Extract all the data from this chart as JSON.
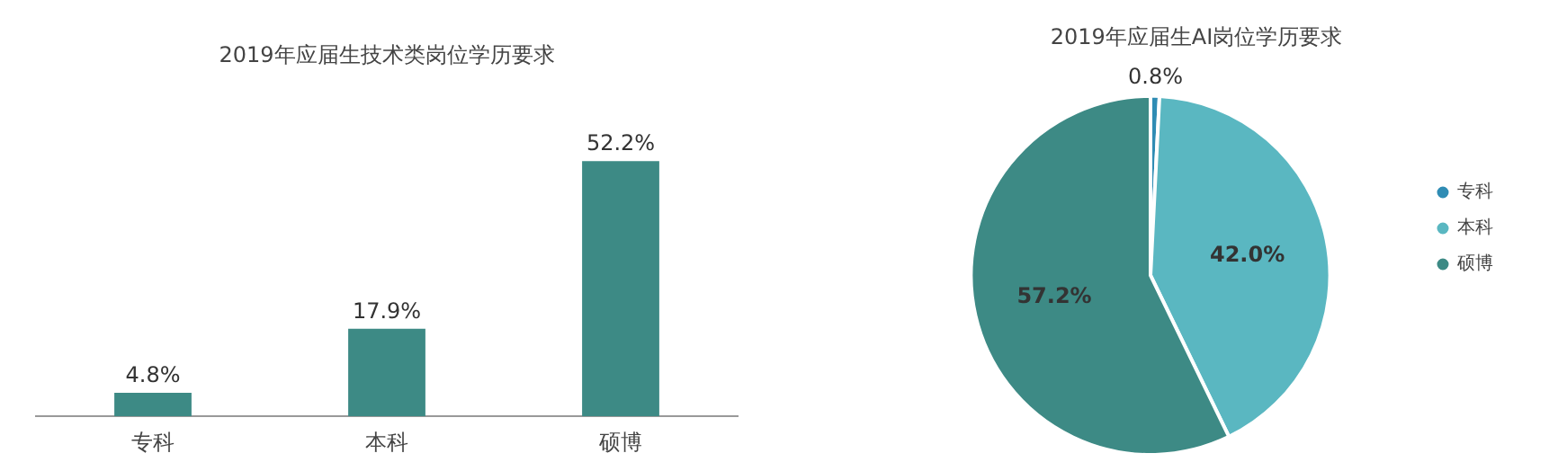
{
  "chart_data": [
    {
      "type": "bar",
      "title": "2019年应届生技术类岗位学历要求",
      "categories": [
        "专科",
        "本科",
        "硕博"
      ],
      "values": [
        4.8,
        17.9,
        52.2
      ],
      "value_labels": [
        "4.8%",
        "17.9%",
        "52.2%"
      ],
      "color": "#3d8a85",
      "legend": false
    },
    {
      "type": "pie",
      "title": "2019年应届生AI岗位学历要求",
      "categories": [
        "专科",
        "本科",
        "硕博"
      ],
      "values": [
        0.8,
        42.0,
        57.2
      ],
      "value_labels": [
        "0.8%",
        "42.0%",
        "57.2%"
      ],
      "colors": [
        "#2f8cb4",
        "#5ab7c1",
        "#3d8a85"
      ],
      "legend": "right"
    }
  ]
}
